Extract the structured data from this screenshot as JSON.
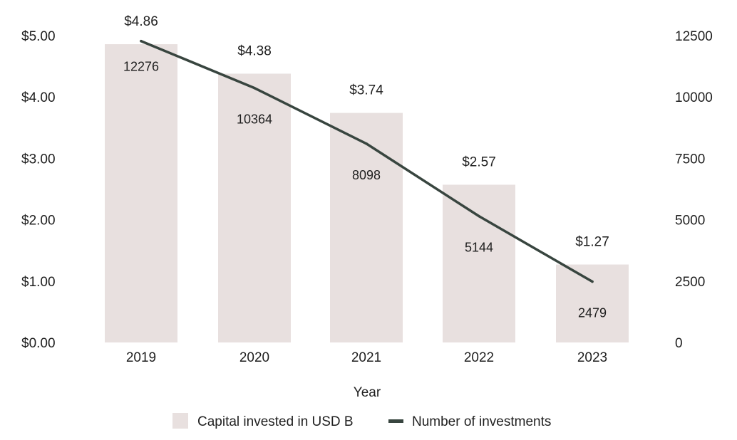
{
  "chart_data": {
    "type": "bar",
    "title": "",
    "xlabel": "Year",
    "ylabel": "",
    "categories": [
      "2019",
      "2020",
      "2021",
      "2022",
      "2023"
    ],
    "series": [
      {
        "name": "Capital invested in USD B",
        "type": "bar",
        "axis": "left",
        "values": [
          4.86,
          4.38,
          3.74,
          2.57,
          1.27
        ],
        "labels": [
          "$4.86",
          "$4.38",
          "$3.74",
          "$2.57",
          "$1.27"
        ],
        "color": "#e8e0df"
      },
      {
        "name": "Number of investments",
        "type": "line",
        "axis": "right",
        "values": [
          12276,
          10364,
          8098,
          5144,
          2479
        ],
        "labels": [
          "12276",
          "10364",
          "8098",
          "5144",
          "2479"
        ],
        "color": "#38453f"
      }
    ],
    "y_left": {
      "ylim": [
        0,
        5
      ],
      "ticks": [
        0,
        1,
        2,
        3,
        4,
        5
      ],
      "tick_labels": [
        "$0.00",
        "$1.00",
        "$2.00",
        "$3.00",
        "$4.00",
        "$5.00"
      ]
    },
    "y_right": {
      "ylim": [
        0,
        12500
      ],
      "ticks": [
        0,
        2500,
        5000,
        7500,
        10000,
        12500
      ],
      "tick_labels": [
        "0",
        "2500",
        "5000",
        "7500",
        "10000",
        "12500"
      ]
    },
    "grid": false,
    "legend": {
      "position": "bottom-center",
      "entries": [
        "Capital invested in USD B",
        "Number of investments"
      ]
    }
  }
}
